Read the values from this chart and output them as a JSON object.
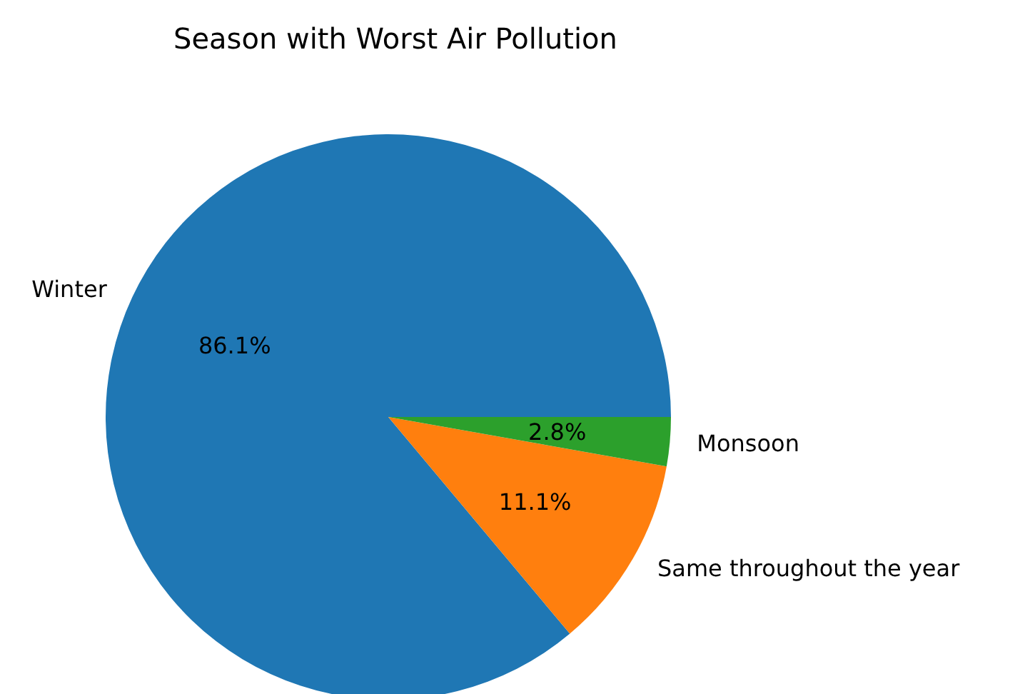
{
  "chart_data": {
    "type": "pie",
    "title": "Season with Worst Air Pollution",
    "categories": [
      "Winter",
      "Same throughout the year",
      "Monsoon"
    ],
    "values": [
      86.1,
      11.1,
      2.8
    ],
    "colors": [
      "#1f77b4",
      "#ff7f0e",
      "#2ca02c"
    ],
    "value_labels": [
      "86.1%",
      "11.1%",
      "2.8%"
    ]
  }
}
